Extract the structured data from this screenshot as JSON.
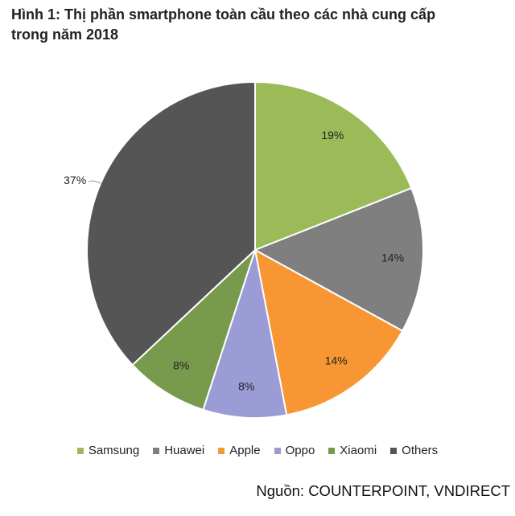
{
  "title_line1": "Hình 1: Thị phần smartphone toàn cầu theo các nhà cung cấp",
  "title_line2": "trong năm 2018",
  "source": "Nguồn: COUNTERPOINT, VNDIRECT",
  "chart_data": {
    "type": "pie",
    "title": "Hình 1: Thị phần smartphone toàn cầu theo các nhà cung cấp trong năm 2018",
    "legend_position": "bottom",
    "slices": [
      {
        "name": "Samsung",
        "value": 19,
        "label": "19%",
        "color": "#9bbb59"
      },
      {
        "name": "Huawei",
        "value": 14,
        "label": "14%",
        "color": "#7f7f7f"
      },
      {
        "name": "Apple",
        "value": 14,
        "label": "14%",
        "color": "#f79633"
      },
      {
        "name": "Oppo",
        "value": 8,
        "label": "8%",
        "color": "#9b9bd6"
      },
      {
        "name": "Xiaomi",
        "value": 8,
        "label": "8%",
        "color": "#779a4c"
      },
      {
        "name": "Others",
        "value": 37,
        "label": "37%",
        "color": "#555555"
      }
    ]
  }
}
